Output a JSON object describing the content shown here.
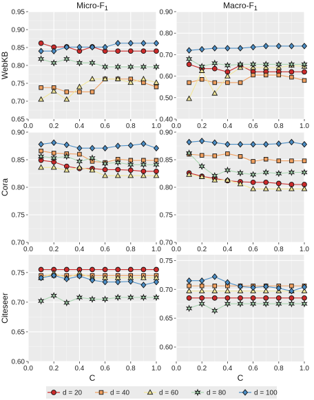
{
  "legend": [
    "d = 20",
    "d = 40",
    "d = 60",
    "d = 80",
    "d = 100"
  ],
  "colors": [
    "#cc2b2b",
    "#f0a060",
    "#f2e79a",
    "#a8d5b0",
    "#4c8fc7"
  ],
  "markers": [
    "circle",
    "square",
    "triangle",
    "star",
    "diamond"
  ],
  "chart_data": [
    {
      "type": "line",
      "row": "WebKB",
      "column": "Micro-F1",
      "title": "Micro-F",
      "title_sub": "1",
      "ylabel": "WebKB",
      "xlabel": "",
      "xlim": [
        0,
        1
      ],
      "ylim": [
        0.65,
        0.95
      ],
      "x": [
        0.1,
        0.2,
        0.3,
        0.4,
        0.5,
        0.6,
        0.7,
        0.8,
        0.9,
        1.0
      ],
      "series": [
        {
          "name": "d = 20",
          "values": [
            0.862,
            0.851,
            0.852,
            0.84,
            0.852,
            0.84,
            0.84,
            0.84,
            0.84,
            0.84
          ]
        },
        {
          "name": "d = 40",
          "values": [
            0.738,
            0.738,
            0.726,
            0.726,
            0.726,
            0.762,
            0.762,
            0.762,
            0.752,
            0.74
          ]
        },
        {
          "name": "d = 60",
          "values": [
            0.705,
            0.728,
            0.705,
            0.74,
            0.762,
            0.762,
            0.762,
            0.752,
            0.762,
            0.752
          ]
        },
        {
          "name": "d = 80",
          "values": [
            0.818,
            0.807,
            0.818,
            0.807,
            0.807,
            0.796,
            0.796,
            0.796,
            0.796,
            0.796
          ]
        },
        {
          "name": "d = 100",
          "values": [
            0.84,
            0.84,
            0.851,
            0.851,
            0.851,
            0.851,
            0.862,
            0.862,
            0.862,
            0.862
          ]
        }
      ]
    },
    {
      "type": "line",
      "row": "WebKB",
      "column": "Macro-F1",
      "title": "Macro-F",
      "title_sub": "1",
      "ylabel": "",
      "xlabel": "",
      "xlim": [
        0,
        1
      ],
      "ylim": [
        0.4,
        0.9
      ],
      "x": [
        0.1,
        0.2,
        0.3,
        0.4,
        0.5,
        0.6,
        0.7,
        0.8,
        0.9,
        1.0
      ],
      "series": [
        {
          "name": "d = 20",
          "values": [
            0.655,
            0.635,
            0.635,
            0.62,
            0.65,
            0.62,
            0.62,
            0.62,
            0.62,
            0.62
          ]
        },
        {
          "name": "d = 40",
          "values": [
            0.57,
            0.585,
            0.57,
            0.57,
            0.57,
            0.605,
            0.605,
            0.605,
            0.595,
            0.58
          ]
        },
        {
          "name": "d = 60",
          "values": [
            0.495,
            0.625,
            0.52,
            0.6,
            0.64,
            0.64,
            0.64,
            0.64,
            0.65,
            0.645
          ]
        },
        {
          "name": "d = 80",
          "values": [
            0.68,
            0.645,
            0.66,
            0.65,
            0.655,
            0.655,
            0.655,
            0.655,
            0.655,
            0.655
          ]
        },
        {
          "name": "d = 100",
          "values": [
            0.72,
            0.725,
            0.73,
            0.73,
            0.73,
            0.735,
            0.74,
            0.74,
            0.74,
            0.74
          ]
        }
      ]
    },
    {
      "type": "line",
      "row": "Cora",
      "column": "Micro-F1",
      "title": "",
      "ylabel": "Cora",
      "xlabel": "",
      "xlim": [
        0,
        1
      ],
      "ylim": [
        0.7,
        0.9
      ],
      "x": [
        0.1,
        0.2,
        0.3,
        0.4,
        0.5,
        0.6,
        0.7,
        0.8,
        0.9,
        1.0
      ],
      "series": [
        {
          "name": "d = 20",
          "values": [
            0.849,
            0.846,
            0.838,
            0.834,
            0.834,
            0.832,
            0.832,
            0.831,
            0.829,
            0.829
          ]
        },
        {
          "name": "d = 40",
          "values": [
            0.866,
            0.862,
            0.861,
            0.86,
            0.847,
            0.845,
            0.851,
            0.849,
            0.849,
            0.849
          ]
        },
        {
          "name": "d = 60",
          "values": [
            0.836,
            0.836,
            0.831,
            0.836,
            0.831,
            0.821,
            0.821,
            0.821,
            0.821,
            0.821
          ]
        },
        {
          "name": "d = 80",
          "values": [
            0.856,
            0.853,
            0.856,
            0.847,
            0.853,
            0.843,
            0.845,
            0.841,
            0.841,
            0.841
          ]
        },
        {
          "name": "d = 100",
          "values": [
            0.878,
            0.881,
            0.877,
            0.871,
            0.871,
            0.871,
            0.875,
            0.876,
            0.879,
            0.871
          ]
        }
      ]
    },
    {
      "type": "line",
      "row": "Cora",
      "column": "Macro-F1",
      "title": "",
      "ylabel": "",
      "xlabel": "",
      "xlim": [
        0,
        1
      ],
      "ylim": [
        0.7,
        0.9
      ],
      "x": [
        0.1,
        0.2,
        0.3,
        0.4,
        0.5,
        0.6,
        0.7,
        0.8,
        0.9,
        1.0
      ],
      "series": [
        {
          "name": "d = 20",
          "values": [
            0.826,
            0.82,
            0.816,
            0.812,
            0.81,
            0.809,
            0.809,
            0.807,
            0.805,
            0.805
          ]
        },
        {
          "name": "d = 40",
          "values": [
            0.86,
            0.858,
            0.857,
            0.861,
            0.856,
            0.847,
            0.851,
            0.848,
            0.848,
            0.848
          ]
        },
        {
          "name": "d = 60",
          "values": [
            0.823,
            0.819,
            0.813,
            0.813,
            0.806,
            0.797,
            0.797,
            0.797,
            0.797,
            0.797
          ]
        },
        {
          "name": "d = 80",
          "values": [
            0.862,
            0.838,
            0.821,
            0.831,
            0.826,
            0.823,
            0.827,
            0.825,
            0.827,
            0.827
          ]
        },
        {
          "name": "d = 100",
          "values": [
            0.882,
            0.884,
            0.881,
            0.878,
            0.878,
            0.878,
            0.878,
            0.879,
            0.882,
            0.878
          ]
        }
      ]
    },
    {
      "type": "line",
      "row": "Citeseer",
      "column": "Micro-F1",
      "title": "",
      "ylabel": "Citeseer",
      "xlabel": "C",
      "xlim": [
        0,
        1
      ],
      "ylim": [
        0.6,
        0.78
      ],
      "x": [
        0.1,
        0.2,
        0.3,
        0.4,
        0.5,
        0.6,
        0.7,
        0.8,
        0.9,
        1.0
      ],
      "series": [
        {
          "name": "d = 20",
          "values": [
            0.755,
            0.755,
            0.755,
            0.755,
            0.755,
            0.755,
            0.755,
            0.755,
            0.755,
            0.755
          ]
        },
        {
          "name": "d = 40",
          "values": [
            0.745,
            0.745,
            0.745,
            0.745,
            0.745,
            0.745,
            0.745,
            0.745,
            0.745,
            0.745
          ]
        },
        {
          "name": "d = 60",
          "values": [
            0.741,
            0.749,
            0.741,
            0.749,
            0.741,
            0.741,
            0.741,
            0.741,
            0.741,
            0.741
          ]
        },
        {
          "name": "d = 80",
          "values": [
            0.702,
            0.711,
            0.699,
            0.708,
            0.705,
            0.705,
            0.708,
            0.708,
            0.708,
            0.708
          ]
        },
        {
          "name": "d = 100",
          "values": [
            0.741,
            0.745,
            0.739,
            0.744,
            0.737,
            0.734,
            0.734,
            0.735,
            0.729,
            0.734
          ]
        }
      ]
    },
    {
      "type": "line",
      "row": "Citeseer",
      "column": "Macro-F1",
      "title": "",
      "ylabel": "",
      "xlabel": "C",
      "xlim": [
        0,
        1
      ],
      "ylim": [
        0.575,
        0.76
      ],
      "x": [
        0.1,
        0.2,
        0.3,
        0.4,
        0.5,
        0.6,
        0.7,
        0.8,
        0.9,
        1.0
      ],
      "series": [
        {
          "name": "d = 20",
          "values": [
            0.685,
            0.685,
            0.685,
            0.685,
            0.685,
            0.685,
            0.685,
            0.685,
            0.685,
            0.685
          ]
        },
        {
          "name": "d = 40",
          "values": [
            0.706,
            0.706,
            0.706,
            0.706,
            0.706,
            0.706,
            0.706,
            0.706,
            0.706,
            0.706
          ]
        },
        {
          "name": "d = 60",
          "values": [
            0.697,
            0.697,
            0.697,
            0.697,
            0.697,
            0.697,
            0.697,
            0.697,
            0.697,
            0.697
          ]
        },
        {
          "name": "d = 80",
          "values": [
            0.667,
            0.675,
            0.663,
            0.675,
            0.675,
            0.675,
            0.675,
            0.675,
            0.675,
            0.675
          ]
        },
        {
          "name": "d = 100",
          "values": [
            0.715,
            0.715,
            0.722,
            0.712,
            0.705,
            0.703,
            0.705,
            0.702,
            0.697,
            0.704
          ]
        }
      ]
    }
  ]
}
